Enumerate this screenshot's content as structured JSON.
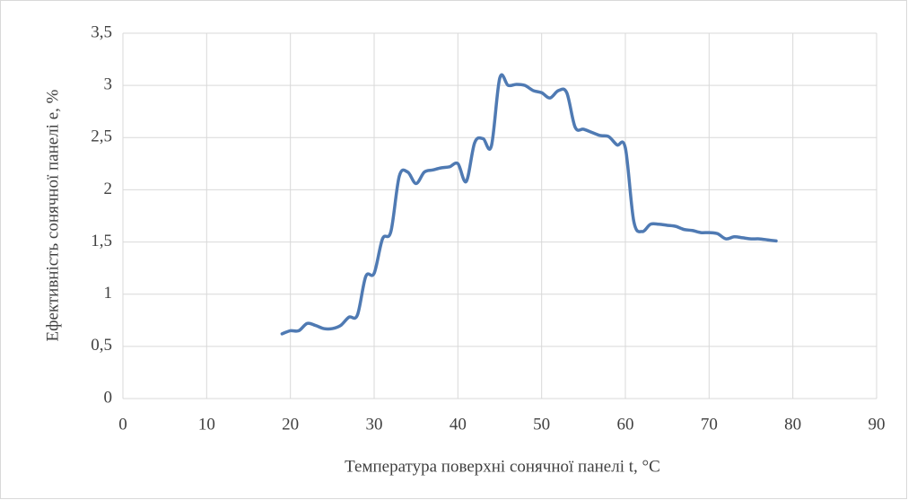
{
  "chart_data": {
    "type": "line",
    "x_label": "Температура поверхні сонячної панелі t, °C",
    "y_label": "Ефективність сонячної панелі е, %",
    "x": [
      19,
      20,
      21,
      22,
      23,
      24,
      25,
      26,
      27,
      28,
      29,
      30,
      31,
      32,
      33,
      34,
      35,
      36,
      37,
      38,
      39,
      40,
      41,
      42,
      43,
      44,
      45,
      46,
      47,
      48,
      49,
      50,
      51,
      52,
      53,
      54,
      55,
      56,
      57,
      58,
      59,
      60,
      61,
      62,
      63,
      64,
      65,
      66,
      67,
      68,
      69,
      70,
      71,
      72,
      73,
      74,
      75,
      76,
      77,
      78
    ],
    "series": [
      {
        "name": "е",
        "color": "#4f7ab3",
        "values": [
          0.62,
          0.65,
          0.65,
          0.72,
          0.7,
          0.67,
          0.67,
          0.7,
          0.78,
          0.8,
          1.17,
          1.2,
          1.53,
          1.6,
          2.13,
          2.17,
          2.06,
          2.17,
          2.19,
          2.21,
          2.22,
          2.25,
          2.08,
          2.45,
          2.49,
          2.42,
          3.07,
          3.0,
          3.01,
          3.0,
          2.95,
          2.93,
          2.88,
          2.95,
          2.93,
          2.6,
          2.58,
          2.55,
          2.52,
          2.51,
          2.43,
          2.4,
          1.7,
          1.6,
          1.67,
          1.67,
          1.66,
          1.65,
          1.62,
          1.61,
          1.59,
          1.59,
          1.58,
          1.53,
          1.55,
          1.54,
          1.53,
          1.53,
          1.52,
          1.51
        ]
      }
    ],
    "xlim": [
      0,
      90
    ],
    "xticks": [
      0,
      10,
      20,
      30,
      40,
      50,
      60,
      70,
      80,
      90
    ],
    "ylim": [
      0,
      3.5
    ],
    "yticks": [
      0,
      {
        "value": 0.5,
        "label": "0,5"
      },
      1,
      {
        "value": 1.5,
        "label": "1,5"
      },
      2,
      {
        "value": 2.5,
        "label": "2,5"
      },
      3,
      {
        "value": 3.5,
        "label": "3,5"
      }
    ],
    "grid": true
  }
}
